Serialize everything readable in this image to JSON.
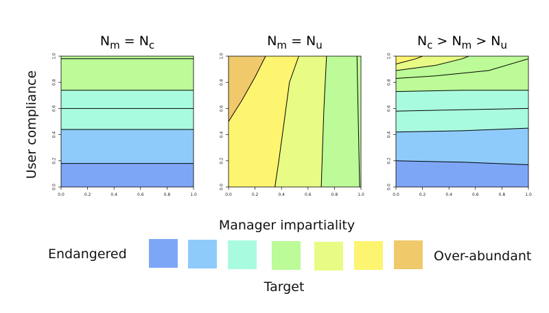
{
  "y_axis_label": "User compliance",
  "x_axis_label": "Manager impartiality",
  "legend": {
    "left_label": "Endangered",
    "right_label": "Over-abundant",
    "title": "Target",
    "colors": [
      "#7ea6f7",
      "#8ecbfa",
      "#a9fbe0",
      "#bcfb97",
      "#e8fb84",
      "#fdf470",
      "#efc96a"
    ]
  },
  "chart_data": [
    {
      "type": "heatmap",
      "title": {
        "p1": "N",
        "s1": "m",
        "op": " = ",
        "p2": "N",
        "s2": "c"
      },
      "xlim": [
        0,
        1
      ],
      "ylim": [
        0,
        1
      ],
      "xticks": [
        "0.0",
        "0.2",
        "0.4",
        "0.6",
        "0.8",
        "1.0"
      ],
      "yticks": [
        "0.0",
        "0.2",
        "0.4",
        "0.6",
        "0.8",
        "1.0"
      ],
      "contours": [
        {
          "level": "",
          "points": [
            [
              0,
              0.18
            ],
            [
              1,
              0.18
            ]
          ]
        },
        {
          "level": "",
          "points": [
            [
              0,
              0.44
            ],
            [
              1,
              0.44
            ]
          ]
        },
        {
          "level": "",
          "points": [
            [
              0,
              0.6
            ],
            [
              1,
              0.6
            ]
          ]
        },
        {
          "level": "",
          "points": [
            [
              0,
              0.74
            ],
            [
              1,
              0.74
            ]
          ]
        },
        {
          "level": "",
          "points": [
            [
              0,
              0.98
            ],
            [
              1,
              0.98
            ]
          ]
        }
      ],
      "regions": [
        {
          "color": "#7ea6f7",
          "points": [
            [
              0,
              0
            ],
            [
              1,
              0
            ],
            [
              1,
              0.18
            ],
            [
              0,
              0.18
            ]
          ]
        },
        {
          "color": "#8ecbfa",
          "points": [
            [
              0,
              0.18
            ],
            [
              1,
              0.18
            ],
            [
              1,
              0.44
            ],
            [
              0,
              0.44
            ]
          ]
        },
        {
          "color": "#a9fbe0",
          "points": [
            [
              0,
              0.44
            ],
            [
              1,
              0.44
            ],
            [
              1,
              0.74
            ],
            [
              0,
              0.74
            ]
          ]
        },
        {
          "color": "#bcfb97",
          "points": [
            [
              0,
              0.74
            ],
            [
              1,
              0.74
            ],
            [
              1,
              1
            ],
            [
              0,
              1
            ]
          ]
        }
      ]
    },
    {
      "type": "heatmap",
      "title": {
        "p1": "N",
        "s1": "m",
        "op": " = ",
        "p2": "N",
        "s2": "u"
      },
      "xlim": [
        0,
        1
      ],
      "ylim": [
        0,
        1
      ],
      "xticks": [
        "0.0",
        "0.2",
        "0.4",
        "0.6",
        "0.8",
        "1.0"
      ],
      "yticks": [
        "0.0",
        "0.2",
        "0.4",
        "0.6",
        "0.8",
        "1.0"
      ],
      "contours": [
        {
          "level": "",
          "points": [
            [
              0,
              0.5
            ],
            [
              0.1,
              0.66
            ],
            [
              0.2,
              0.84
            ],
            [
              0.28,
              1
            ]
          ]
        },
        {
          "level": "",
          "points": [
            [
              0.35,
              0
            ],
            [
              0.38,
              0.2
            ],
            [
              0.42,
              0.5
            ],
            [
              0.46,
              0.8
            ],
            [
              0.53,
              1
            ]
          ]
        },
        {
          "level": "",
          "points": [
            [
              0.7,
              0
            ],
            [
              0.71,
              0.3
            ],
            [
              0.72,
              0.6
            ],
            [
              0.74,
              1
            ]
          ]
        },
        {
          "level": "",
          "points": [
            [
              0.99,
              0
            ],
            [
              0.98,
              0.5
            ],
            [
              0.97,
              1
            ]
          ]
        }
      ],
      "regions": [
        {
          "color": "#fdf470",
          "points": [
            [
              0,
              0
            ],
            [
              0.35,
              0
            ],
            [
              0.38,
              0.2
            ],
            [
              0.42,
              0.5
            ],
            [
              0.46,
              0.8
            ],
            [
              0.53,
              1
            ],
            [
              0,
              1
            ]
          ]
        },
        {
          "color": "#e8fb84",
          "points": [
            [
              0.35,
              0
            ],
            [
              0.7,
              0
            ],
            [
              0.71,
              0.3
            ],
            [
              0.72,
              0.6
            ],
            [
              0.74,
              1
            ],
            [
              0.53,
              1
            ],
            [
              0.46,
              0.8
            ],
            [
              0.42,
              0.5
            ],
            [
              0.38,
              0.2
            ]
          ]
        },
        {
          "color": "#bcfb97",
          "points": [
            [
              0.7,
              0
            ],
            [
              1,
              0
            ],
            [
              1,
              1
            ],
            [
              0.74,
              1
            ],
            [
              0.72,
              0.6
            ],
            [
              0.71,
              0.3
            ]
          ]
        },
        {
          "color": "#efc96a",
          "points": [
            [
              0,
              0.5
            ],
            [
              0.1,
              0.66
            ],
            [
              0.2,
              0.84
            ],
            [
              0.28,
              1
            ],
            [
              0,
              1
            ]
          ]
        }
      ]
    },
    {
      "type": "heatmap",
      "title": {
        "p1": "N",
        "s1": "c",
        "op": " > ",
        "p2": "N",
        "s2": "m",
        "op2": " > ",
        "p3": "N",
        "s3": "u"
      },
      "xlim": [
        0,
        1
      ],
      "ylim": [
        0,
        1
      ],
      "xticks": [
        "0.0",
        "0.2",
        "0.4",
        "0.6",
        "0.8",
        "1.0"
      ],
      "yticks": [
        "0.0",
        "0.2",
        "0.4",
        "0.6",
        "0.8",
        "1.0"
      ],
      "contours": [
        {
          "level": "",
          "points": [
            [
              0,
              0.2
            ],
            [
              0.5,
              0.19
            ],
            [
              1,
              0.17
            ]
          ]
        },
        {
          "level": "",
          "points": [
            [
              0,
              0.42
            ],
            [
              0.5,
              0.43
            ],
            [
              1,
              0.45
            ]
          ]
        },
        {
          "level": "",
          "points": [
            [
              0,
              0.58
            ],
            [
              0.5,
              0.59
            ],
            [
              1,
              0.6
            ]
          ]
        },
        {
          "level": "",
          "points": [
            [
              0,
              0.73
            ],
            [
              0.5,
              0.74
            ],
            [
              1,
              0.74
            ]
          ]
        },
        {
          "level": "",
          "points": [
            [
              0,
              0.83
            ],
            [
              0.3,
              0.85
            ],
            [
              0.7,
              0.89
            ],
            [
              1,
              0.98
            ]
          ]
        },
        {
          "level": "",
          "points": [
            [
              0,
              0.89
            ],
            [
              0.3,
              0.93
            ],
            [
              0.5,
              0.98
            ],
            [
              0.55,
              1
            ]
          ]
        },
        {
          "level": "",
          "points": [
            [
              0,
              0.94
            ],
            [
              0.15,
              0.98
            ],
            [
              0.2,
              1
            ]
          ]
        }
      ],
      "regions": [
        {
          "color": "#7ea6f7",
          "points": [
            [
              0,
              0
            ],
            [
              1,
              0
            ],
            [
              1,
              0.17
            ],
            [
              0.5,
              0.19
            ],
            [
              0,
              0.2
            ]
          ]
        },
        {
          "color": "#8ecbfa",
          "points": [
            [
              0,
              0.2
            ],
            [
              0.5,
              0.19
            ],
            [
              1,
              0.17
            ],
            [
              1,
              0.45
            ],
            [
              0.5,
              0.43
            ],
            [
              0,
              0.42
            ]
          ]
        },
        {
          "color": "#a9fbe0",
          "points": [
            [
              0,
              0.42
            ],
            [
              0.5,
              0.43
            ],
            [
              1,
              0.45
            ],
            [
              1,
              0.74
            ],
            [
              0.5,
              0.74
            ],
            [
              0,
              0.73
            ]
          ]
        },
        {
          "color": "#bcfb97",
          "points": [
            [
              0,
              0.73
            ],
            [
              0.5,
              0.74
            ],
            [
              1,
              0.74
            ],
            [
              1,
              1
            ],
            [
              0,
              1
            ]
          ]
        },
        {
          "color": "#e8fb84",
          "points": [
            [
              0,
              0.89
            ],
            [
              0.3,
              0.93
            ],
            [
              0.5,
              0.98
            ],
            [
              0.55,
              1
            ],
            [
              0,
              1
            ]
          ]
        },
        {
          "color": "#fdf470",
          "points": [
            [
              0,
              0.94
            ],
            [
              0.15,
              0.98
            ],
            [
              0.2,
              1
            ],
            [
              0,
              1
            ]
          ]
        }
      ]
    }
  ]
}
